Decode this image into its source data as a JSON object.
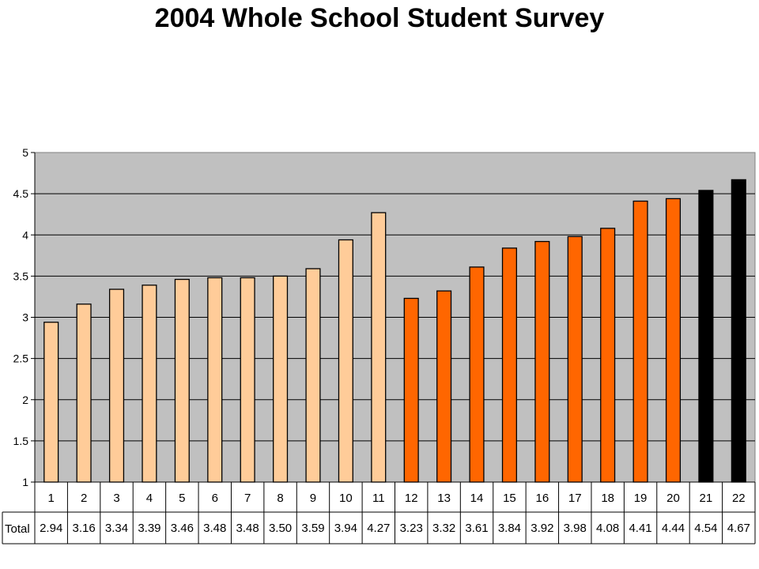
{
  "title": "2004 Whole School Student Survey",
  "chart_data": {
    "type": "bar",
    "title": "2004 Whole School Student Survey",
    "categories": [
      "1",
      "2",
      "3",
      "4",
      "5",
      "6",
      "7",
      "8",
      "9",
      "10",
      "11",
      "12",
      "13",
      "14",
      "15",
      "16",
      "17",
      "18",
      "19",
      "20",
      "21",
      "22"
    ],
    "series": [
      {
        "name": "Total",
        "values": [
          2.94,
          3.16,
          3.34,
          3.39,
          3.46,
          3.48,
          3.48,
          3.5,
          3.59,
          3.94,
          4.27,
          3.23,
          3.32,
          3.61,
          3.84,
          3.92,
          3.98,
          4.08,
          4.41,
          4.44,
          4.54,
          4.67
        ],
        "value_labels": [
          "2.94",
          "3.16",
          "3.34",
          "3.39",
          "3.46",
          "3.48",
          "3.48",
          "3.50",
          "3.59",
          "3.94",
          "4.27",
          "3.23",
          "3.32",
          "3.61",
          "3.84",
          "3.92",
          "3.98",
          "4.08",
          "4.41",
          "4.44",
          "4.54",
          "4.67"
        ]
      }
    ],
    "bar_colors": [
      "#FFCC99",
      "#FFCC99",
      "#FFCC99",
      "#FFCC99",
      "#FFCC99",
      "#FFCC99",
      "#FFCC99",
      "#FFCC99",
      "#FFCC99",
      "#FFCC99",
      "#FFCC99",
      "#FF6600",
      "#FF6600",
      "#FF6600",
      "#FF6600",
      "#FF6600",
      "#FF6600",
      "#FF6600",
      "#FF6600",
      "#FF6600",
      "#000000",
      "#000000"
    ],
    "plot_background": "#C0C0C0",
    "ylim": [
      1,
      5
    ],
    "yticks": [
      "1",
      "1.5",
      "2",
      "2.5",
      "3",
      "3.5",
      "4",
      "4.5",
      "5"
    ],
    "grid": true,
    "data_table": true
  }
}
